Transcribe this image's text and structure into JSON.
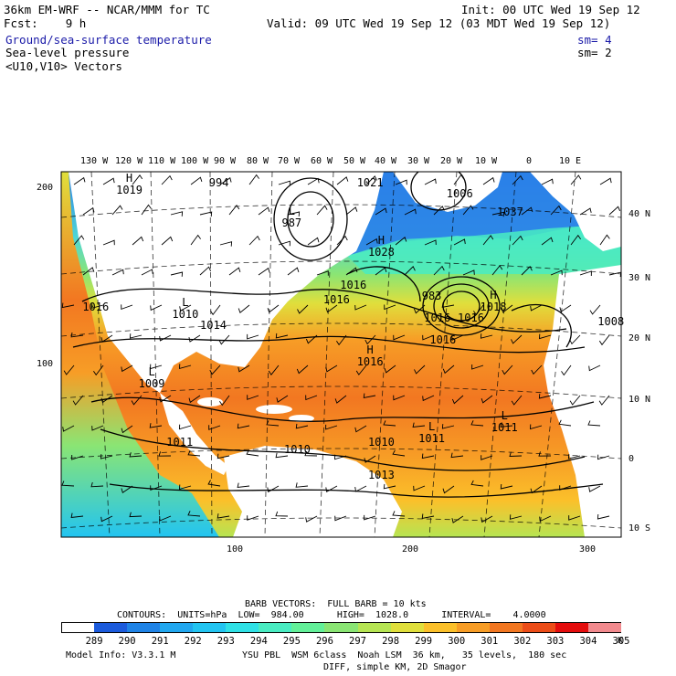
{
  "header": {
    "title": "36km EM-WRF -- NCAR/MMM for TC",
    "init": "Init: 00 UTC Wed 19 Sep 12",
    "fcst": "Fcst:    9 h",
    "valid": "Valid: 09 UTC Wed 19 Sep 12 (03 MDT Wed 19 Sep 12)",
    "field1": "Ground/sea-surface temperature",
    "field1_sm": "sm= 4",
    "field2": "Sea-level pressure",
    "field2_sm": "sm= 2",
    "field3": "<U10,V10> Vectors"
  },
  "colors": {
    "field1_text": "#1a1aa8",
    "land": "#ffffff",
    "contour": "#000000"
  },
  "map": {
    "lon_labels": [
      "130 W",
      "120 W",
      "110 W",
      "100 W",
      "90 W",
      "80 W",
      "70 W",
      "60 W",
      "50 W",
      "40 W",
      "30 W",
      "20 W",
      "10 W",
      "0",
      "10 E"
    ],
    "lat_labels": [
      "40 N",
      "30 N",
      "20 N",
      "10 N",
      "0",
      "10 S"
    ],
    "grid_y_labels": [
      "200",
      "100"
    ],
    "grid_x_labels": [
      "100",
      "200",
      "300"
    ],
    "pressure_centers": [
      {
        "type": "H",
        "value": "1019",
        "x": 12,
        "y": 5
      },
      {
        "type": "",
        "value": "994",
        "x": 28,
        "y": 3
      },
      {
        "type": "L",
        "value": "987",
        "x": 41,
        "y": 14
      },
      {
        "type": "",
        "value": "1021",
        "x": 55,
        "y": 3
      },
      {
        "type": "",
        "value": "1006",
        "x": 71,
        "y": 6
      },
      {
        "type": "",
        "value": "1037",
        "x": 80,
        "y": 11
      },
      {
        "type": "H",
        "value": "1028",
        "x": 57,
        "y": 22
      },
      {
        "type": "",
        "value": "983",
        "x": 66,
        "y": 34
      },
      {
        "type": "H",
        "value": "1018",
        "x": 77,
        "y": 37
      },
      {
        "type": "",
        "value": "1016",
        "x": 67,
        "y": 40
      },
      {
        "type": "",
        "value": "1016",
        "x": 73,
        "y": 40
      },
      {
        "type": "",
        "value": "1016",
        "x": 68,
        "y": 46
      },
      {
        "type": "",
        "value": "1016",
        "x": 52,
        "y": 31
      },
      {
        "type": "",
        "value": "1016",
        "x": 49,
        "y": 35
      },
      {
        "type": "",
        "value": "1016",
        "x": 6,
        "y": 37
      },
      {
        "type": "",
        "value": "1014",
        "x": 27,
        "y": 42
      },
      {
        "type": "L",
        "value": "1010",
        "x": 22,
        "y": 39
      },
      {
        "type": "H",
        "value": "1016",
        "x": 55,
        "y": 52
      },
      {
        "type": "L",
        "value": "1009",
        "x": 16,
        "y": 58
      },
      {
        "type": "",
        "value": "1011",
        "x": 21,
        "y": 74
      },
      {
        "type": "",
        "value": "1010",
        "x": 42,
        "y": 76
      },
      {
        "type": "",
        "value": "1010",
        "x": 57,
        "y": 74
      },
      {
        "type": "L",
        "value": "1011",
        "x": 66,
        "y": 73
      },
      {
        "type": "L",
        "value": "1011",
        "x": 79,
        "y": 70
      },
      {
        "type": "",
        "value": "1008",
        "x": 98,
        "y": 41
      },
      {
        "type": "",
        "value": "1013",
        "x": 57,
        "y": 83
      }
    ]
  },
  "footer": {
    "barb": "BARB VECTORS:  FULL BARB = 10 kts",
    "contours": "CONTOURS:  UNITS=hPa  LOW=  984.00      HIGH=  1028.0      INTERVAL=    4.0000",
    "colorbar": {
      "labels": [
        "289",
        "290",
        "291",
        "292",
        "293",
        "294",
        "295",
        "296",
        "297",
        "298",
        "299",
        "300",
        "301",
        "302",
        "303",
        "304",
        "305"
      ],
      "colors": [
        "#ffffff",
        "#1c5bdc",
        "#1f83e6",
        "#21a7ef",
        "#22c4f1",
        "#2fe1e6",
        "#49ecc2",
        "#63f099",
        "#8ae574",
        "#b6e553",
        "#e0df3c",
        "#fbc02a",
        "#f79d26",
        "#f27721",
        "#ec4d18",
        "#e40d0d",
        "#f28a8e"
      ],
      "unit": "K"
    },
    "model_info": "Model Info: V3.3.1 M",
    "physics_line1": "YSU PBL  WSM 6class  Noah LSM  36 km,   35 levels,  180 sec",
    "physics_line2": "DIFF, simple KM, 2D Smagor"
  }
}
